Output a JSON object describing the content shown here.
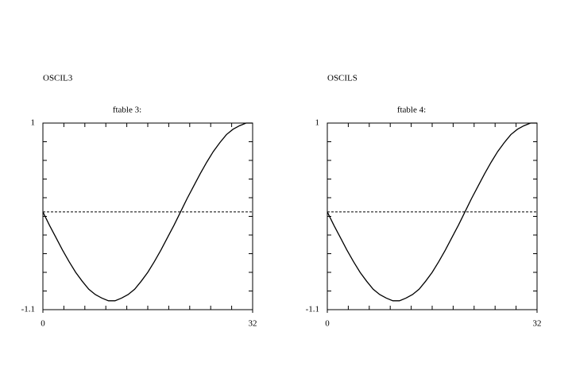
{
  "chart_data": [
    {
      "type": "line",
      "label": "OSCIL3",
      "title": "ftable 3:",
      "x": [
        0,
        1,
        2,
        3,
        4,
        5,
        6,
        7,
        8,
        9,
        10,
        11,
        12,
        13,
        14,
        15,
        16,
        17,
        18,
        19,
        20,
        21,
        22,
        23,
        24,
        25,
        26,
        27,
        28,
        29,
        30,
        31,
        32
      ],
      "values": [
        0,
        -0.15,
        -0.29,
        -0.43,
        -0.56,
        -0.68,
        -0.78,
        -0.87,
        -0.93,
        -0.97,
        -1.0,
        -1.0,
        -0.97,
        -0.93,
        -0.87,
        -0.78,
        -0.68,
        -0.56,
        -0.43,
        -0.29,
        -0.15,
        0,
        0.15,
        0.29,
        0.43,
        0.56,
        0.68,
        0.78,
        0.87,
        0.93,
        0.97,
        1.0,
        1.0
      ],
      "color": "#000000",
      "xlim": [
        0,
        32
      ],
      "ylim": [
        -1.1,
        1
      ],
      "xticks": [
        0,
        32
      ],
      "yticks": [
        -1.1,
        1
      ],
      "hline": 0
    },
    {
      "type": "line",
      "label": "OSCILS",
      "title": "ftable 4:",
      "x": [
        0,
        1,
        2,
        3,
        4,
        5,
        6,
        7,
        8,
        9,
        10,
        11,
        12,
        13,
        14,
        15,
        16,
        17,
        18,
        19,
        20,
        21,
        22,
        23,
        24,
        25,
        26,
        27,
        28,
        29,
        30,
        31,
        32
      ],
      "values": [
        0,
        -0.15,
        -0.29,
        -0.43,
        -0.56,
        -0.68,
        -0.78,
        -0.87,
        -0.93,
        -0.97,
        -1.0,
        -1.0,
        -0.97,
        -0.93,
        -0.87,
        -0.78,
        -0.68,
        -0.56,
        -0.43,
        -0.29,
        -0.15,
        0,
        0.15,
        0.29,
        0.43,
        0.56,
        0.68,
        0.78,
        0.87,
        0.93,
        0.97,
        1.0,
        1.0
      ],
      "color": "#000000",
      "xlim": [
        0,
        32
      ],
      "ylim": [
        -1.1,
        1
      ],
      "xticks": [
        0,
        32
      ],
      "yticks": [
        -1.1,
        1
      ],
      "hline": 0
    }
  ]
}
